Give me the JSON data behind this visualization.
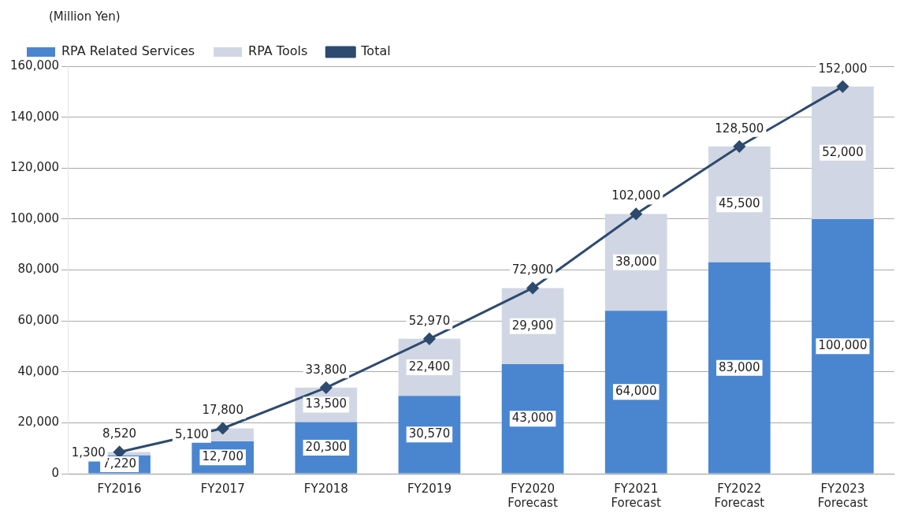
{
  "chart_data": {
    "type": "bar",
    "ylabel": "(Million Yen)",
    "stacked": true,
    "categories": [
      "FY2016",
      "FY2017",
      "FY2018",
      "FY2019",
      "FY2020\nForecast",
      "FY2021\nForecast",
      "FY2022\nForecast",
      "FY2023\nForecast"
    ],
    "series": [
      {
        "name": "RPA Related Services",
        "color": "#4a86d0",
        "values": [
          7220,
          12700,
          20300,
          30570,
          43000,
          64000,
          83000,
          100000
        ],
        "value_labels": [
          "7,220",
          "12,700",
          "20,300",
          "30,570",
          "43,000",
          "64,000",
          "83,000",
          "100,000"
        ]
      },
      {
        "name": "RPA Tools",
        "color": "#d0d6e4",
        "values": [
          1300,
          5100,
          13500,
          22400,
          29900,
          38000,
          45500,
          52000
        ],
        "value_labels": [
          "1,300",
          "5,100",
          "13,500",
          "22,400",
          "29,900",
          "38,000",
          "45,500",
          "52,000"
        ]
      },
      {
        "name": "Total",
        "type": "line",
        "color": "#2e4a6e",
        "marker": "diamond",
        "line_style": "solid",
        "values": [
          8520,
          17800,
          33800,
          52970,
          72900,
          102000,
          128500,
          152000
        ],
        "value_labels": [
          "8,520",
          "17,800",
          "33,800",
          "52,970",
          "72,900",
          "102,000",
          "128,500",
          "152,000"
        ]
      }
    ],
    "ylim": [
      0,
      160000
    ],
    "yticks": [
      {
        "value": 0,
        "label": "0"
      },
      {
        "value": 20000,
        "label": "20,000"
      },
      {
        "value": 40000,
        "label": "40,000"
      },
      {
        "value": 60000,
        "label": "60,000"
      },
      {
        "value": 80000,
        "label": "80,000"
      },
      {
        "value": 100000,
        "label": "100,000"
      },
      {
        "value": 120000,
        "label": "120,000"
      },
      {
        "value": 140000,
        "label": "140,000"
      },
      {
        "value": 160000,
        "label": "160,000"
      }
    ],
    "grid": "y",
    "legend": "top left"
  }
}
